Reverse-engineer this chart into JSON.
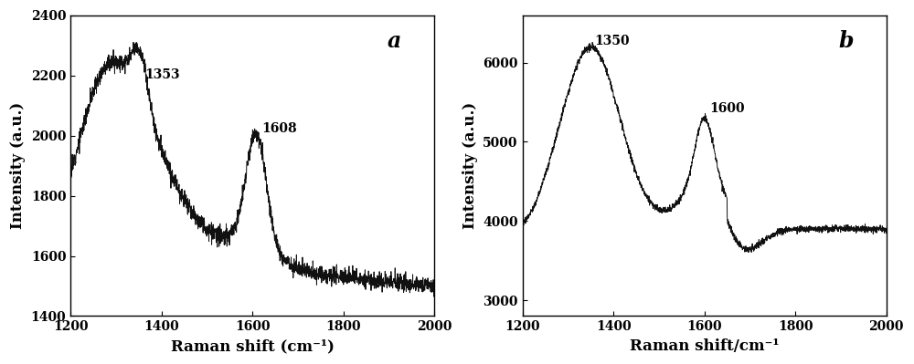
{
  "plot_a": {
    "label": "a",
    "xlabel": "Raman shift (cm⁻¹)",
    "ylabel": "Intensity (a.u.)",
    "xlim": [
      1200,
      2000
    ],
    "ylim": [
      1400,
      2400
    ],
    "yticks": [
      1400,
      1600,
      1800,
      2000,
      2200,
      2400
    ],
    "xticks": [
      1200,
      1400,
      1600,
      1800,
      2000
    ],
    "peak1_x": 1353,
    "peak1_y": 2170,
    "peak2_x": 1608,
    "peak2_y": 2000,
    "peak1_label": "1353",
    "peak2_label": "1608"
  },
  "plot_b": {
    "label": "b",
    "xlabel": "Raman shift/cm⁻¹",
    "ylabel": "Intensity (a.u.)",
    "xlim": [
      1200,
      2000
    ],
    "ylim": [
      2800,
      6600
    ],
    "yticks": [
      3000,
      4000,
      5000,
      6000
    ],
    "xticks": [
      1200,
      1400,
      1600,
      1800,
      2000
    ],
    "peak1_x": 1350,
    "peak1_y": 6200,
    "peak2_x": 1600,
    "peak2_y": 5350,
    "peak1_label": "1350",
    "peak2_label": "1600"
  },
  "line_color": "#111111",
  "line_width": 0.7,
  "font_family": "serif",
  "label_fontsize": 12,
  "tick_fontsize": 10,
  "annotation_fontsize": 10,
  "panel_label_fontsize": 17
}
